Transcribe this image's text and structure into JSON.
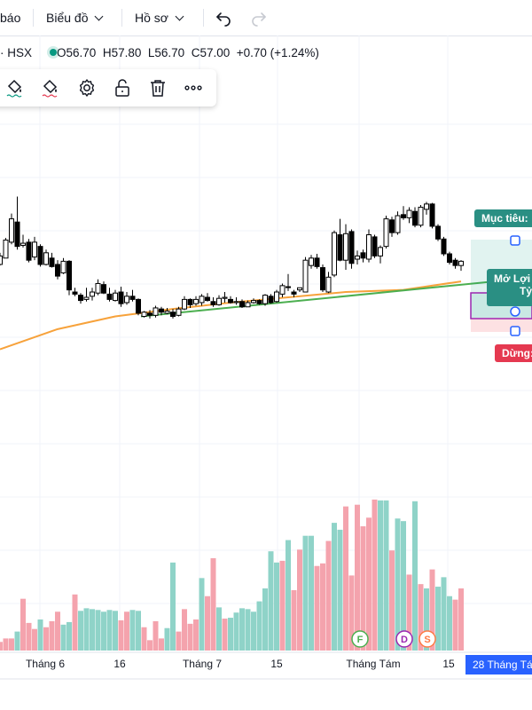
{
  "topbar": {
    "item0": "báo",
    "item1": "Biểu đồ",
    "item2": "Hồ sơ",
    "undo_icon": "undo-icon",
    "redo_icon": "redo-icon"
  },
  "legend": {
    "symbol": "· HSX",
    "o": "O56.70",
    "h": "H57.80",
    "l": "L56.70",
    "c": "C57.00",
    "change": "+0.70 (+1.24%)"
  },
  "drawing_toolbar": [
    "fill-color-icon",
    "line-color-icon",
    "text-color-icon",
    "settings-icon",
    "unlock-icon",
    "trash-icon",
    "more-icon"
  ],
  "colors": {
    "up_candle": "#ffffff",
    "down_candle": "#000000",
    "ma_line": "#f7a23b",
    "trend_line": "#4caf50",
    "vol_up": "#8fd3c8",
    "vol_down": "#f4a3ad",
    "target_label": "#2a8f83",
    "stop_label": "#e53950",
    "date_badge": "#2962ff"
  },
  "position_tool": {
    "target_label": "Mục tiêu:",
    "open_label": "Mở Lợi",
    "open_label2": "Tỷ",
    "stop_label": "Dừng:"
  },
  "events": [
    "F",
    "D",
    "S"
  ],
  "chart_data": {
    "type": "candlestick",
    "title": "",
    "x_ticks": [
      "Tháng 6",
      "16",
      "Tháng 7",
      "15",
      "Tháng Tám",
      "15",
      "28 Tháng Tá"
    ],
    "ylim": [
      37.8,
      60.4
    ],
    "candles": [
      [
        52.2,
        53.3,
        52.1,
        53.0
      ],
      [
        52.8,
        54.7,
        52.8,
        54.5
      ],
      [
        54.3,
        57.0,
        54.1,
        56.5
      ],
      [
        56.2,
        58.6,
        53.6,
        53.9
      ],
      [
        54.0,
        55.0,
        53.8,
        54.2
      ],
      [
        54.3,
        54.6,
        52.4,
        52.6
      ],
      [
        52.9,
        54.8,
        52.6,
        54.3
      ],
      [
        53.9,
        54.1,
        52.0,
        52.2
      ],
      [
        52.2,
        53.6,
        52.1,
        53.3
      ],
      [
        52.8,
        53.3,
        51.9,
        52.0
      ],
      [
        52.2,
        52.6,
        50.8,
        51.1
      ],
      [
        51.4,
        52.8,
        51.3,
        52.5
      ],
      [
        52.5,
        52.6,
        49.3,
        49.8
      ],
      [
        49.6,
        50.0,
        49.2,
        49.4
      ],
      [
        49.3,
        49.5,
        48.5,
        48.8
      ],
      [
        48.9,
        50.0,
        48.7,
        49.1
      ],
      [
        49.2,
        50.0,
        48.8,
        49.6
      ],
      [
        49.5,
        50.8,
        49.3,
        50.4
      ],
      [
        50.3,
        50.6,
        49.4,
        49.5
      ],
      [
        49.4,
        50.0,
        48.7,
        48.9
      ],
      [
        48.8,
        49.8,
        48.7,
        49.5
      ],
      [
        49.6,
        50.1,
        48.2,
        48.5
      ],
      [
        48.6,
        49.6,
        48.4,
        49.2
      ],
      [
        49.2,
        49.8,
        48.7,
        48.9
      ],
      [
        48.9,
        49.0,
        47.4,
        47.6
      ],
      [
        47.3,
        47.8,
        47.2,
        47.7
      ],
      [
        47.6,
        47.9,
        47.1,
        47.4
      ],
      [
        47.4,
        48.3,
        47.2,
        48.1
      ],
      [
        48.0,
        48.2,
        47.4,
        47.7
      ],
      [
        47.6,
        48.1,
        47.5,
        47.8
      ],
      [
        47.7,
        48.0,
        47.1,
        47.3
      ],
      [
        47.4,
        48.2,
        47.3,
        48.0
      ],
      [
        48.0,
        49.2,
        47.9,
        48.9
      ],
      [
        48.9,
        49.0,
        48.1,
        48.4
      ],
      [
        48.5,
        49.2,
        48.3,
        48.9
      ],
      [
        48.6,
        49.4,
        48.3,
        49.2
      ],
      [
        49.1,
        49.5,
        48.7,
        48.8
      ],
      [
        48.7,
        49.1,
        48.2,
        48.4
      ],
      [
        48.4,
        49.3,
        48.3,
        49.0
      ],
      [
        49.0,
        49.6,
        48.6,
        49.1
      ],
      [
        48.9,
        49.2,
        48.5,
        48.6
      ],
      [
        48.6,
        49.1,
        48.4,
        48.7
      ],
      [
        48.7,
        48.9,
        48.1,
        48.2
      ],
      [
        48.2,
        48.8,
        48.2,
        48.6
      ],
      [
        48.6,
        49.0,
        48.5,
        48.8
      ],
      [
        48.8,
        48.9,
        48.4,
        48.5
      ],
      [
        48.5,
        49.4,
        48.3,
        49.3
      ],
      [
        49.2,
        49.4,
        48.5,
        48.6
      ],
      [
        48.7,
        49.8,
        48.6,
        49.6
      ],
      [
        49.4,
        50.4,
        49.1,
        50.2
      ],
      [
        50.1,
        51.3,
        49.7,
        50.1
      ],
      [
        49.6,
        49.8,
        49.1,
        49.4
      ],
      [
        49.8,
        50.0,
        49.6,
        50.0
      ],
      [
        49.6,
        52.9,
        49.6,
        52.6
      ],
      [
        52.1,
        53.1,
        51.8,
        52.8
      ],
      [
        52.8,
        53.2,
        51.8,
        52.0
      ],
      [
        51.9,
        52.2,
        49.6,
        49.8
      ],
      [
        49.6,
        51.5,
        49.5,
        51.0
      ],
      [
        51.2,
        55.4,
        51.0,
        55.2
      ],
      [
        55.0,
        56.5,
        52.5,
        52.6
      ],
      [
        52.6,
        56.0,
        51.7,
        55.1
      ],
      [
        55.3,
        55.5,
        51.8,
        52.3
      ],
      [
        52.7,
        53.5,
        52.2,
        53.0
      ],
      [
        53.3,
        53.6,
        52.4,
        52.8
      ],
      [
        52.7,
        55.5,
        52.4,
        55.0
      ],
      [
        54.8,
        55.0,
        52.8,
        53.0
      ],
      [
        53.0,
        54.0,
        52.3,
        53.8
      ],
      [
        53.9,
        56.8,
        53.7,
        56.5
      ],
      [
        56.4,
        56.7,
        54.8,
        55.2
      ],
      [
        55.2,
        57.2,
        55.0,
        56.8
      ],
      [
        56.9,
        57.7,
        56.4,
        56.6
      ],
      [
        56.6,
        57.6,
        56.1,
        57.3
      ],
      [
        57.2,
        57.6,
        55.7,
        55.9
      ],
      [
        55.9,
        57.8,
        55.7,
        57.6
      ],
      [
        57.4,
        58.1,
        56.9,
        57.9
      ],
      [
        57.9,
        58.0,
        55.6,
        55.8
      ],
      [
        55.8,
        56.0,
        54.4,
        54.6
      ],
      [
        54.6,
        54.8,
        53.0,
        53.2
      ],
      [
        53.2,
        53.4,
        52.2,
        52.4
      ],
      [
        52.6,
        52.8,
        51.8,
        52.1
      ],
      [
        52.1,
        52.6,
        51.6,
        52.5
      ]
    ],
    "ma_line": [
      [
        0,
        44.2
      ],
      [
        10,
        46.1
      ],
      [
        20,
        47.3
      ],
      [
        30,
        48.0
      ],
      [
        40,
        48.6
      ],
      [
        50,
        49.1
      ],
      [
        60,
        49.6
      ],
      [
        70,
        49.8
      ],
      [
        80,
        50.6
      ]
    ],
    "trend_line": [
      [
        24,
        47.3
      ],
      [
        80,
        50.7
      ]
    ],
    "volume": [
      [
        0,
        10
      ],
      [
        0,
        14
      ],
      [
        0,
        14
      ],
      [
        1,
        22
      ],
      [
        0,
        60
      ],
      [
        0,
        32
      ],
      [
        0,
        25
      ],
      [
        1,
        36
      ],
      [
        0,
        27
      ],
      [
        0,
        34
      ],
      [
        0,
        45
      ],
      [
        1,
        30
      ],
      [
        1,
        33
      ],
      [
        0,
        65
      ],
      [
        1,
        46
      ],
      [
        1,
        49
      ],
      [
        1,
        48
      ],
      [
        1,
        47
      ],
      [
        1,
        45
      ],
      [
        1,
        47
      ],
      [
        1,
        46
      ],
      [
        0,
        35
      ],
      [
        0,
        45
      ],
      [
        1,
        47
      ],
      [
        1,
        46
      ],
      [
        0,
        27
      ],
      [
        0,
        12
      ],
      [
        0,
        34
      ],
      [
        0,
        14
      ],
      [
        1,
        26
      ],
      [
        1,
        102
      ],
      [
        0,
        22
      ],
      [
        0,
        48
      ],
      [
        0,
        31
      ],
      [
        0,
        36
      ],
      [
        1,
        84
      ],
      [
        0,
        63
      ],
      [
        0,
        107
      ],
      [
        1,
        50
      ],
      [
        0,
        37
      ],
      [
        1,
        38
      ],
      [
        1,
        44
      ],
      [
        1,
        49
      ],
      [
        1,
        48
      ],
      [
        1,
        45
      ],
      [
        1,
        57
      ],
      [
        1,
        72
      ],
      [
        1,
        115
      ],
      [
        1,
        102
      ],
      [
        0,
        104
      ],
      [
        1,
        128
      ],
      [
        0,
        70
      ],
      [
        0,
        117
      ],
      [
        1,
        133
      ],
      [
        1,
        133
      ],
      [
        0,
        98
      ],
      [
        0,
        101
      ],
      [
        0,
        127
      ],
      [
        1,
        148
      ],
      [
        1,
        140
      ],
      [
        0,
        167
      ],
      [
        0,
        87
      ],
      [
        0,
        169
      ],
      [
        0,
        144
      ],
      [
        0,
        154
      ],
      [
        0,
        175
      ],
      [
        1,
        174
      ],
      [
        1,
        174
      ],
      [
        0,
        116
      ],
      [
        1,
        153
      ],
      [
        1,
        150
      ],
      [
        0,
        88
      ],
      [
        1,
        173
      ],
      [
        0,
        77
      ],
      [
        1,
        72
      ],
      [
        0,
        94
      ],
      [
        1,
        74
      ],
      [
        1,
        85
      ],
      [
        1,
        63
      ],
      [
        0,
        59
      ],
      [
        0,
        72
      ]
    ],
    "vol_max": 180
  },
  "axis_labels": [
    "Tháng 6",
    "16",
    "Tháng 7",
    "15",
    "Tháng Tám",
    "15",
    "28 Tháng Tá"
  ]
}
